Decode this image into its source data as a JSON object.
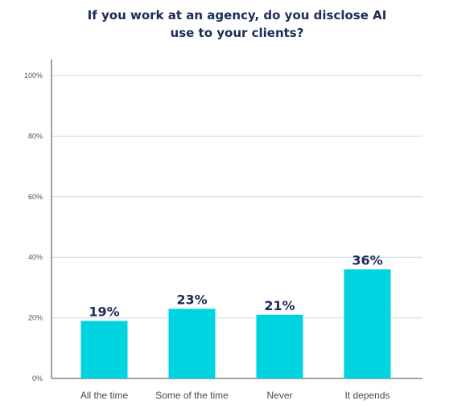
{
  "title_lines": [
    "If you work at an agency, do you disclose AI",
    "use to your clients?"
  ],
  "colors": {
    "bar": "#00d4e0",
    "title": "#1c2b57",
    "value_label": "#1c2b57",
    "grid": "#c6dbe6",
    "axis": "#4a4a4a",
    "tick_label": "#555555",
    "category_label": "#4a4a4a"
  },
  "chart_data": {
    "type": "bar",
    "title": "If you work at an agency, do you disclose AI use to your clients?",
    "categories": [
      "All the time",
      "Some of the time",
      "Never",
      "It depends"
    ],
    "values": [
      19,
      23,
      21,
      36
    ],
    "value_labels": [
      "19%",
      "23%",
      "21%",
      "36%"
    ],
    "ylim": [
      0,
      100
    ],
    "yticks": [
      0,
      20,
      40,
      60,
      80,
      100
    ],
    "ytick_labels": [
      "0%",
      "20%",
      "40%",
      "60%",
      "80%",
      "100%"
    ],
    "grid": true,
    "legend": "none",
    "xlabel": "",
    "ylabel": ""
  }
}
